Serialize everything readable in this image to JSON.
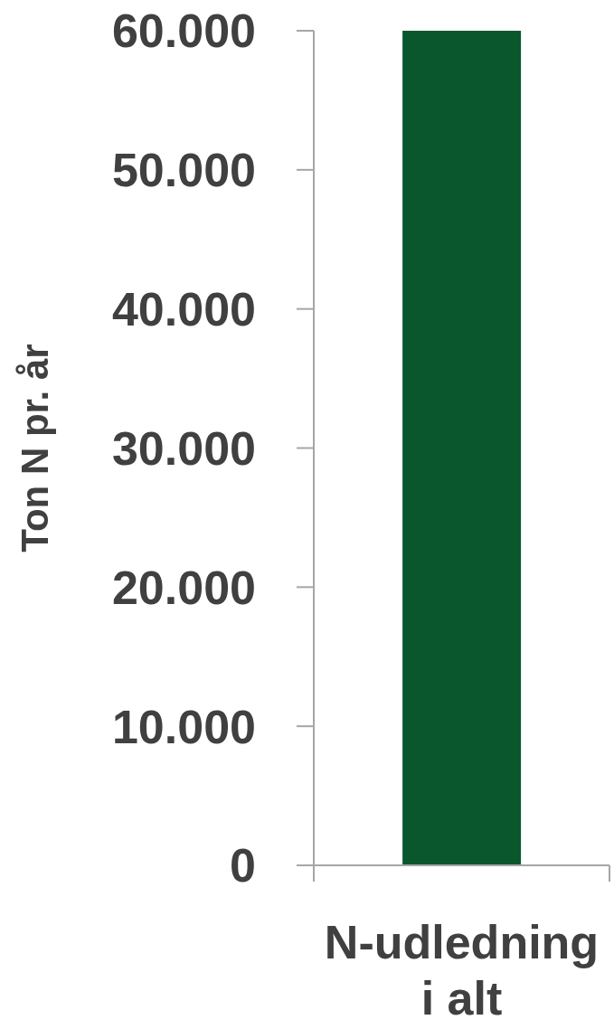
{
  "chart_data": {
    "type": "bar",
    "ylabel": "Ton N pr. år",
    "categories": [
      "N-udledning i alt"
    ],
    "values": [
      60000
    ],
    "color": "#0b572d",
    "ylim": [
      0,
      60000
    ],
    "yticks": [
      {
        "value": 0,
        "label": "0"
      },
      {
        "value": 10000,
        "label": "10.000"
      },
      {
        "value": 20000,
        "label": "20.000"
      },
      {
        "value": 30000,
        "label": "30.000"
      },
      {
        "value": 40000,
        "label": "40.000"
      },
      {
        "value": 50000,
        "label": "50.000"
      },
      {
        "value": 60000,
        "label": "60.000"
      }
    ],
    "grid": false,
    "legend": false
  }
}
